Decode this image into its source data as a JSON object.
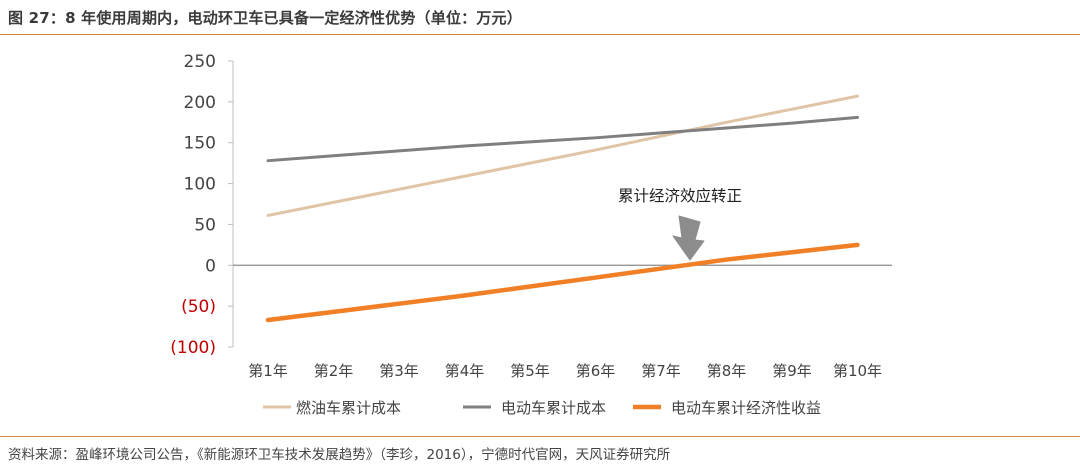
{
  "figure_title": "图 27：8 年使用周期内，电动环卫车已具备一定经济性优势（单位：万元）",
  "source_note": "资料来源：盈峰环境公司公告，《新能源环卫车技术发展趋势》（李珍，2016），宁德时代官网，天风证券研究所",
  "chart_data": {
    "type": "line",
    "categories": [
      "第1年",
      "第2年",
      "第3年",
      "第4年",
      "第5年",
      "第6年",
      "第7年",
      "第8年",
      "第9年",
      "第10年"
    ],
    "ylim": [
      -100,
      250
    ],
    "yticks": [
      250,
      200,
      150,
      100,
      50,
      0,
      -50,
      -100
    ],
    "ytick_labels": [
      "250",
      "200",
      "150",
      "100",
      "50",
      "0",
      "(50)",
      "(100)"
    ],
    "series": [
      {
        "name": "燃油车累计成本",
        "color": "#dfc4a6",
        "width": 3,
        "values": [
          61,
          77,
          93,
          109,
          125,
          141,
          158,
          175,
          191,
          207
        ]
      },
      {
        "name": "电动车累计成本",
        "color": "#7f7f7f",
        "width": 3,
        "values": [
          128,
          134,
          140,
          146,
          151,
          156,
          162,
          168,
          174,
          181
        ]
      },
      {
        "name": "电动车累计经济性收益",
        "color": "#f07f26",
        "width": 4.5,
        "values": [
          -67,
          -57,
          -47,
          -37,
          -26,
          -15,
          -4,
          7,
          16,
          25
        ]
      }
    ],
    "annotation": {
      "text": "累计经济效应转正",
      "arrow_color": "#8c8c8c"
    },
    "grid": false,
    "legend_position": "bottom"
  }
}
